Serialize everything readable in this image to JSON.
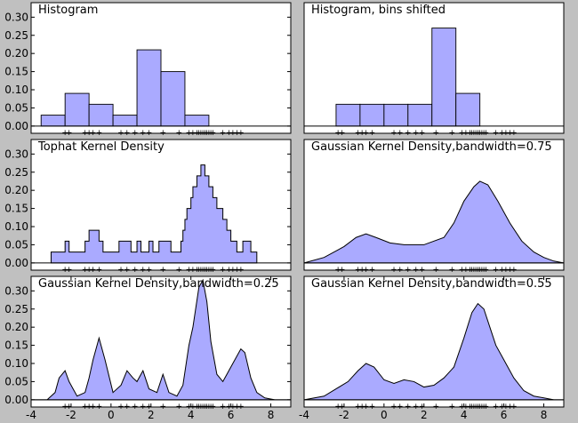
{
  "colors": {
    "fill": "#aaaaff",
    "edge": "#000000",
    "background": "#c0c0c0",
    "panel": "#ffffff"
  },
  "chart_data": [
    {
      "type": "bar",
      "title": "Histogram",
      "xlim": [
        -4,
        9
      ],
      "ylim": [
        -0.02,
        0.34
      ],
      "bin_edges": [
        -3.5,
        -2.3,
        -1.1,
        0.1,
        1.3,
        2.5,
        3.7,
        4.9
      ],
      "values": [
        0.03,
        0.09,
        0.06,
        0.03,
        0.21,
        0.15,
        0.03
      ],
      "yticks": [
        "0.30",
        "0.25",
        "0.20",
        "0.15",
        "0.10",
        "0.05",
        "0.00"
      ],
      "ytick_values": [
        0.3,
        0.25,
        0.2,
        0.15,
        0.1,
        0.05,
        0.0
      ],
      "xticks": [],
      "rug": true
    },
    {
      "type": "bar",
      "title": "Histogram, bins shifted",
      "xlim": [
        -4,
        9
      ],
      "ylim": [
        -0.02,
        0.34
      ],
      "bin_edges": [
        -2.4,
        -1.2,
        0.0,
        1.2,
        2.4,
        3.6,
        4.8
      ],
      "values": [
        0.06,
        0.06,
        0.06,
        0.06,
        0.27,
        0.09
      ],
      "yticks": [],
      "ytick_values": [],
      "xticks": [],
      "rug": true
    },
    {
      "type": "area",
      "title": "Tophat Kernel Density",
      "xlim": [
        -4,
        9
      ],
      "ylim": [
        -0.02,
        0.34
      ],
      "x": [
        -3.0,
        -3.0,
        -2.3,
        -2.3,
        -2.1,
        -2.1,
        -1.3,
        -1.3,
        -1.1,
        -1.1,
        -0.6,
        -0.6,
        -0.4,
        -0.4,
        0.4,
        0.4,
        1.0,
        1.0,
        1.3,
        1.3,
        1.5,
        1.5,
        1.9,
        1.9,
        2.1,
        2.1,
        2.4,
        2.4,
        3.0,
        3.0,
        3.5,
        3.5,
        3.6,
        3.6,
        3.7,
        3.7,
        3.8,
        3.8,
        4.0,
        4.0,
        4.1,
        4.1,
        4.3,
        4.3,
        4.5,
        4.5,
        4.7,
        4.7,
        4.9,
        4.9,
        5.1,
        5.1,
        5.3,
        5.3,
        5.6,
        5.6,
        5.8,
        5.8,
        6.0,
        6.0,
        6.3,
        6.3,
        6.6,
        6.6,
        7.0,
        7.0,
        7.3,
        7.3
      ],
      "y": [
        0.0,
        0.03,
        0.03,
        0.06,
        0.06,
        0.03,
        0.03,
        0.06,
        0.06,
        0.09,
        0.09,
        0.06,
        0.06,
        0.03,
        0.03,
        0.06,
        0.06,
        0.03,
        0.03,
        0.06,
        0.06,
        0.03,
        0.03,
        0.06,
        0.06,
        0.03,
        0.03,
        0.06,
        0.06,
        0.03,
        0.03,
        0.06,
        0.06,
        0.09,
        0.09,
        0.12,
        0.12,
        0.15,
        0.15,
        0.18,
        0.18,
        0.21,
        0.21,
        0.24,
        0.24,
        0.27,
        0.27,
        0.24,
        0.24,
        0.21,
        0.21,
        0.18,
        0.18,
        0.15,
        0.15,
        0.12,
        0.12,
        0.09,
        0.09,
        0.06,
        0.06,
        0.03,
        0.03,
        0.06,
        0.06,
        0.03,
        0.03,
        0.0
      ],
      "yticks": [
        "0.30",
        "0.25",
        "0.20",
        "0.15",
        "0.10",
        "0.05",
        "0.00"
      ],
      "ytick_values": [
        0.3,
        0.25,
        0.2,
        0.15,
        0.1,
        0.05,
        0.0
      ],
      "xticks": [],
      "rug": true
    },
    {
      "type": "area",
      "title": "Gaussian Kernel Density,bandwidth=0.75",
      "xlim": [
        -4,
        9
      ],
      "ylim": [
        -0.02,
        0.34
      ],
      "x": [
        -4.0,
        -3.0,
        -2.0,
        -1.4,
        -0.9,
        -0.4,
        0.3,
        1.0,
        2.0,
        3.0,
        3.5,
        4.0,
        4.5,
        4.8,
        5.2,
        5.7,
        6.3,
        6.9,
        7.5,
        8.0,
        8.5,
        9.0
      ],
      "y": [
        0.0,
        0.015,
        0.045,
        0.07,
        0.08,
        0.07,
        0.055,
        0.05,
        0.05,
        0.07,
        0.11,
        0.17,
        0.21,
        0.225,
        0.215,
        0.17,
        0.11,
        0.06,
        0.03,
        0.015,
        0.005,
        0.0
      ],
      "yticks": [],
      "ytick_values": [],
      "xticks": [],
      "rug": true
    },
    {
      "type": "area",
      "title": "Gaussian Kernel Density,bandwidth=0.25",
      "xlim": [
        -4,
        9
      ],
      "ylim": [
        -0.02,
        0.34
      ],
      "x": [
        -4.0,
        -3.2,
        -2.8,
        -2.6,
        -2.3,
        -2.1,
        -1.7,
        -1.3,
        -1.1,
        -0.9,
        -0.6,
        -0.3,
        0.1,
        0.5,
        0.8,
        1.1,
        1.3,
        1.6,
        1.9,
        2.3,
        2.6,
        2.9,
        3.3,
        3.6,
        3.9,
        4.1,
        4.4,
        4.6,
        4.8,
        5.0,
        5.3,
        5.6,
        5.9,
        6.2,
        6.5,
        6.7,
        7.0,
        7.3,
        7.7,
        8.2,
        9.0
      ],
      "y": [
        0.0,
        0.0,
        0.02,
        0.06,
        0.08,
        0.05,
        0.01,
        0.02,
        0.06,
        0.11,
        0.17,
        0.11,
        0.02,
        0.04,
        0.08,
        0.06,
        0.05,
        0.08,
        0.03,
        0.02,
        0.07,
        0.02,
        0.01,
        0.04,
        0.15,
        0.2,
        0.31,
        0.33,
        0.27,
        0.16,
        0.07,
        0.05,
        0.08,
        0.11,
        0.14,
        0.13,
        0.06,
        0.02,
        0.005,
        0.0,
        0.0
      ],
      "yticks": [
        "0.30",
        "0.25",
        "0.20",
        "0.15",
        "0.10",
        "0.05",
        "0.00"
      ],
      "ytick_values": [
        0.3,
        0.25,
        0.2,
        0.15,
        0.1,
        0.05,
        0.0
      ],
      "xticks": [
        "-4",
        "-2",
        "0",
        "2",
        "4",
        "6",
        "8"
      ],
      "xtick_values": [
        -4,
        -2,
        0,
        2,
        4,
        6,
        8
      ],
      "rug": true
    },
    {
      "type": "area",
      "title": "Gaussian Kernel Density,bandwidth=0.55",
      "xlim": [
        -4,
        9
      ],
      "ylim": [
        -0.02,
        0.34
      ],
      "x": [
        -4.0,
        -3.0,
        -2.4,
        -1.8,
        -1.3,
        -0.9,
        -0.5,
        0.0,
        0.5,
        1.0,
        1.5,
        2.0,
        2.5,
        3.0,
        3.5,
        4.0,
        4.4,
        4.7,
        5.0,
        5.3,
        5.6,
        6.0,
        6.5,
        7.0,
        7.5,
        8.0,
        8.5,
        9.0
      ],
      "y": [
        0.0,
        0.01,
        0.03,
        0.05,
        0.08,
        0.1,
        0.09,
        0.055,
        0.045,
        0.055,
        0.05,
        0.035,
        0.04,
        0.06,
        0.09,
        0.17,
        0.24,
        0.265,
        0.25,
        0.2,
        0.15,
        0.11,
        0.06,
        0.025,
        0.01,
        0.005,
        0.0,
        0.0
      ],
      "yticks": [],
      "ytick_values": [],
      "xticks": [
        "-4",
        "-2",
        "0",
        "2",
        "4",
        "6",
        "8"
      ],
      "xtick_values": [
        -4,
        -2,
        0,
        2,
        4,
        6,
        8
      ],
      "rug": true
    }
  ],
  "rug_points": [
    -2.3,
    -2.1,
    -1.3,
    -1.1,
    -0.9,
    -0.6,
    0.5,
    0.8,
    1.2,
    1.6,
    1.9,
    2.6,
    3.4,
    3.9,
    4.1,
    4.3,
    4.4,
    4.5,
    4.6,
    4.7,
    4.8,
    4.9,
    5.0,
    5.1,
    5.6,
    5.9,
    6.1,
    6.3,
    6.5
  ]
}
